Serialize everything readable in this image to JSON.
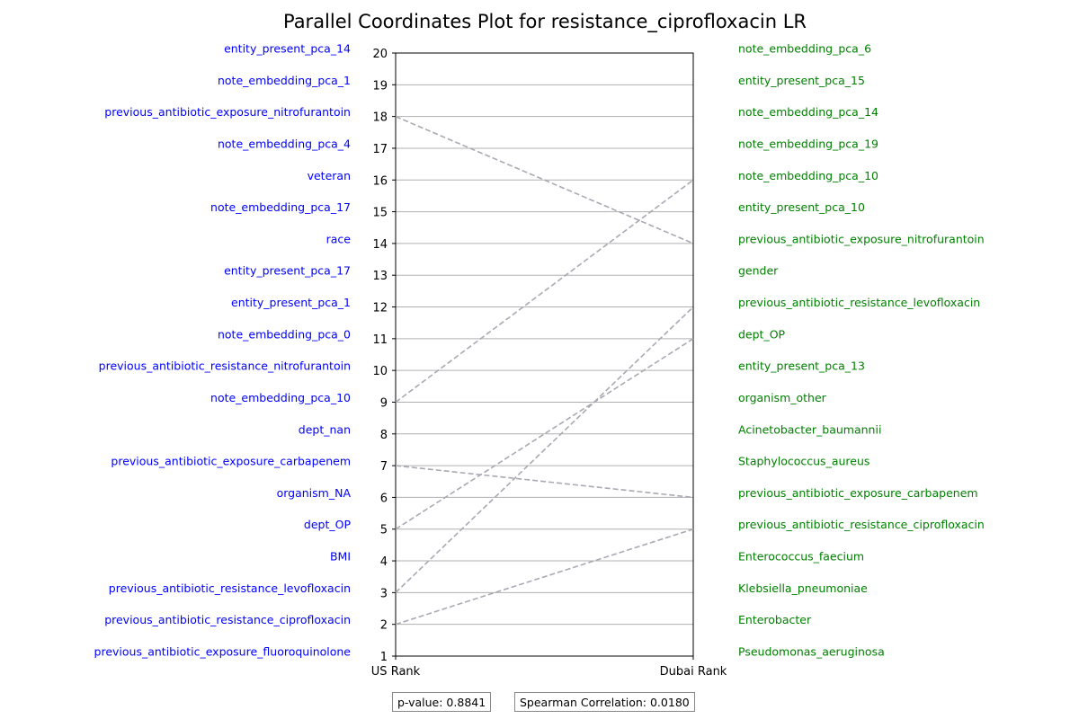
{
  "chart_data": {
    "type": "parallel_coordinates",
    "title": "Parallel Coordinates Plot for resistance_ciprofloxacin LR",
    "axes": [
      "US Rank",
      "Dubai Rank"
    ],
    "ylim": [
      1,
      20
    ],
    "yticks": [
      1,
      2,
      3,
      4,
      5,
      6,
      7,
      8,
      9,
      10,
      11,
      12,
      13,
      14,
      15,
      16,
      17,
      18,
      19,
      20
    ],
    "grid": true,
    "left_labels": [
      {
        "rank": 20,
        "label": "entity_present_pca_14"
      },
      {
        "rank": 19,
        "label": "note_embedding_pca_1"
      },
      {
        "rank": 18,
        "label": "previous_antibiotic_exposure_nitrofurantoin"
      },
      {
        "rank": 17,
        "label": "note_embedding_pca_4"
      },
      {
        "rank": 16,
        "label": "veteran"
      },
      {
        "rank": 15,
        "label": "note_embedding_pca_17"
      },
      {
        "rank": 14,
        "label": "race"
      },
      {
        "rank": 13,
        "label": "entity_present_pca_17"
      },
      {
        "rank": 12,
        "label": "entity_present_pca_1"
      },
      {
        "rank": 11,
        "label": "note_embedding_pca_0"
      },
      {
        "rank": 10,
        "label": "previous_antibiotic_resistance_nitrofurantoin"
      },
      {
        "rank": 9,
        "label": "note_embedding_pca_10"
      },
      {
        "rank": 8,
        "label": "dept_nan"
      },
      {
        "rank": 7,
        "label": "previous_antibiotic_exposure_carbapenem"
      },
      {
        "rank": 6,
        "label": "organism_NA"
      },
      {
        "rank": 5,
        "label": "dept_OP"
      },
      {
        "rank": 4,
        "label": "BMI"
      },
      {
        "rank": 3,
        "label": "previous_antibiotic_resistance_levofloxacin"
      },
      {
        "rank": 2,
        "label": "previous_antibiotic_resistance_ciprofloxacin"
      },
      {
        "rank": 1,
        "label": "previous_antibiotic_exposure_fluoroquinolone"
      }
    ],
    "right_labels": [
      {
        "rank": 20,
        "label": "note_embedding_pca_6"
      },
      {
        "rank": 19,
        "label": "entity_present_pca_15"
      },
      {
        "rank": 18,
        "label": "note_embedding_pca_14"
      },
      {
        "rank": 17,
        "label": "note_embedding_pca_19"
      },
      {
        "rank": 16,
        "label": "note_embedding_pca_10"
      },
      {
        "rank": 15,
        "label": "entity_present_pca_10"
      },
      {
        "rank": 14,
        "label": "previous_antibiotic_exposure_nitrofurantoin"
      },
      {
        "rank": 13,
        "label": "gender"
      },
      {
        "rank": 12,
        "label": "previous_antibiotic_resistance_levofloxacin"
      },
      {
        "rank": 11,
        "label": "dept_OP"
      },
      {
        "rank": 10,
        "label": "entity_present_pca_13"
      },
      {
        "rank": 9,
        "label": "organism_other"
      },
      {
        "rank": 8,
        "label": "Acinetobacter_baumannii"
      },
      {
        "rank": 7,
        "label": "Staphylococcus_aureus"
      },
      {
        "rank": 6,
        "label": "previous_antibiotic_exposure_carbapenem"
      },
      {
        "rank": 5,
        "label": "previous_antibiotic_resistance_ciprofloxacin"
      },
      {
        "rank": 4,
        "label": "Enterococcus_faecium"
      },
      {
        "rank": 3,
        "label": "Klebsiella_pneumoniae"
      },
      {
        "rank": 2,
        "label": "Enterobacter"
      },
      {
        "rank": 1,
        "label": "Pseudomonas_aeruginosa"
      }
    ],
    "lines": [
      {
        "us_rank": 18,
        "dubai_rank": 14
      },
      {
        "us_rank": 9,
        "dubai_rank": 16
      },
      {
        "us_rank": 7,
        "dubai_rank": 6
      },
      {
        "us_rank": 5,
        "dubai_rank": 11
      },
      {
        "us_rank": 3,
        "dubai_rank": 12
      },
      {
        "us_rank": 2,
        "dubai_rank": 5
      }
    ],
    "colors": {
      "left_labels": "#0000ff",
      "right_labels": "#008000",
      "lines": "#a9a9b3",
      "grid": "#b0b0b0"
    },
    "p_value_text": "p-value: 0.8841",
    "spearman_text": "Spearman Correlation: 0.0180"
  }
}
